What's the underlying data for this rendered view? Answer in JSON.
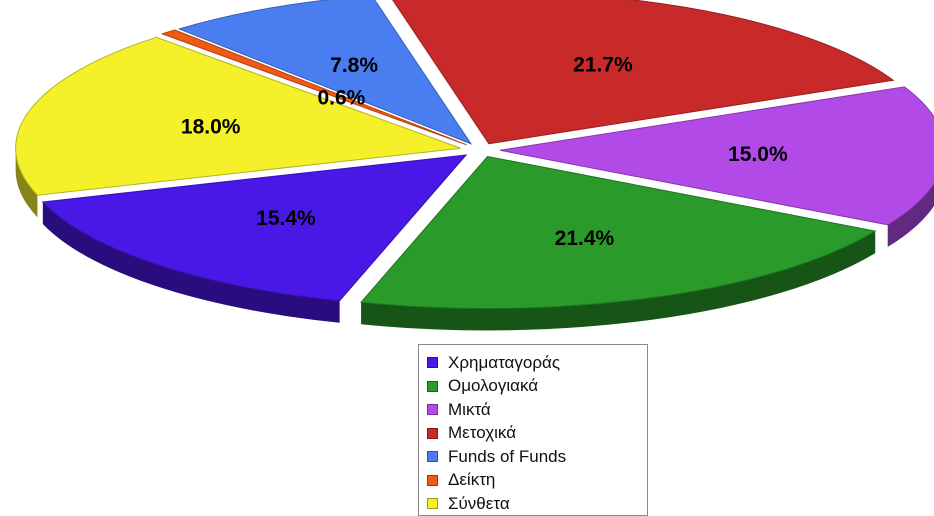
{
  "chart_data": {
    "type": "pie",
    "three_d": true,
    "exploded": true,
    "slices": [
      {
        "label": "Χρηματαγοράς",
        "value": 15.4,
        "value_label": "15.4%",
        "color": "#4a18e6"
      },
      {
        "label": "Ομολογιακά",
        "value": 21.4,
        "value_label": "21.4%",
        "color": "#2a9a2a"
      },
      {
        "label": "Μικτά",
        "value": 15.0,
        "value_label": "15.0%",
        "color": "#b24ae8"
      },
      {
        "label": "Μετοχικά",
        "value": 21.7,
        "value_label": "21.7%",
        "color": "#c82a2a"
      },
      {
        "label": "Funds of Funds",
        "value": 7.8,
        "value_label": "7.8%",
        "color": "#4a7ef0"
      },
      {
        "label": "Δείκτη",
        "value": 0.6,
        "value_label": "0.6%",
        "color": "#f05a14"
      },
      {
        "label": "Σύνθετα",
        "value": 18.0,
        "value_label": "18.0%",
        "color": "#f4f02a"
      }
    ],
    "legend": {
      "placement": "bottom",
      "entries": [
        "Χρηματαγοράς",
        "Ομολογιακά",
        "Μικτά",
        "Μετοχικά",
        "Funds of Funds",
        "Δείκτη",
        "Σύνθετα"
      ]
    }
  }
}
